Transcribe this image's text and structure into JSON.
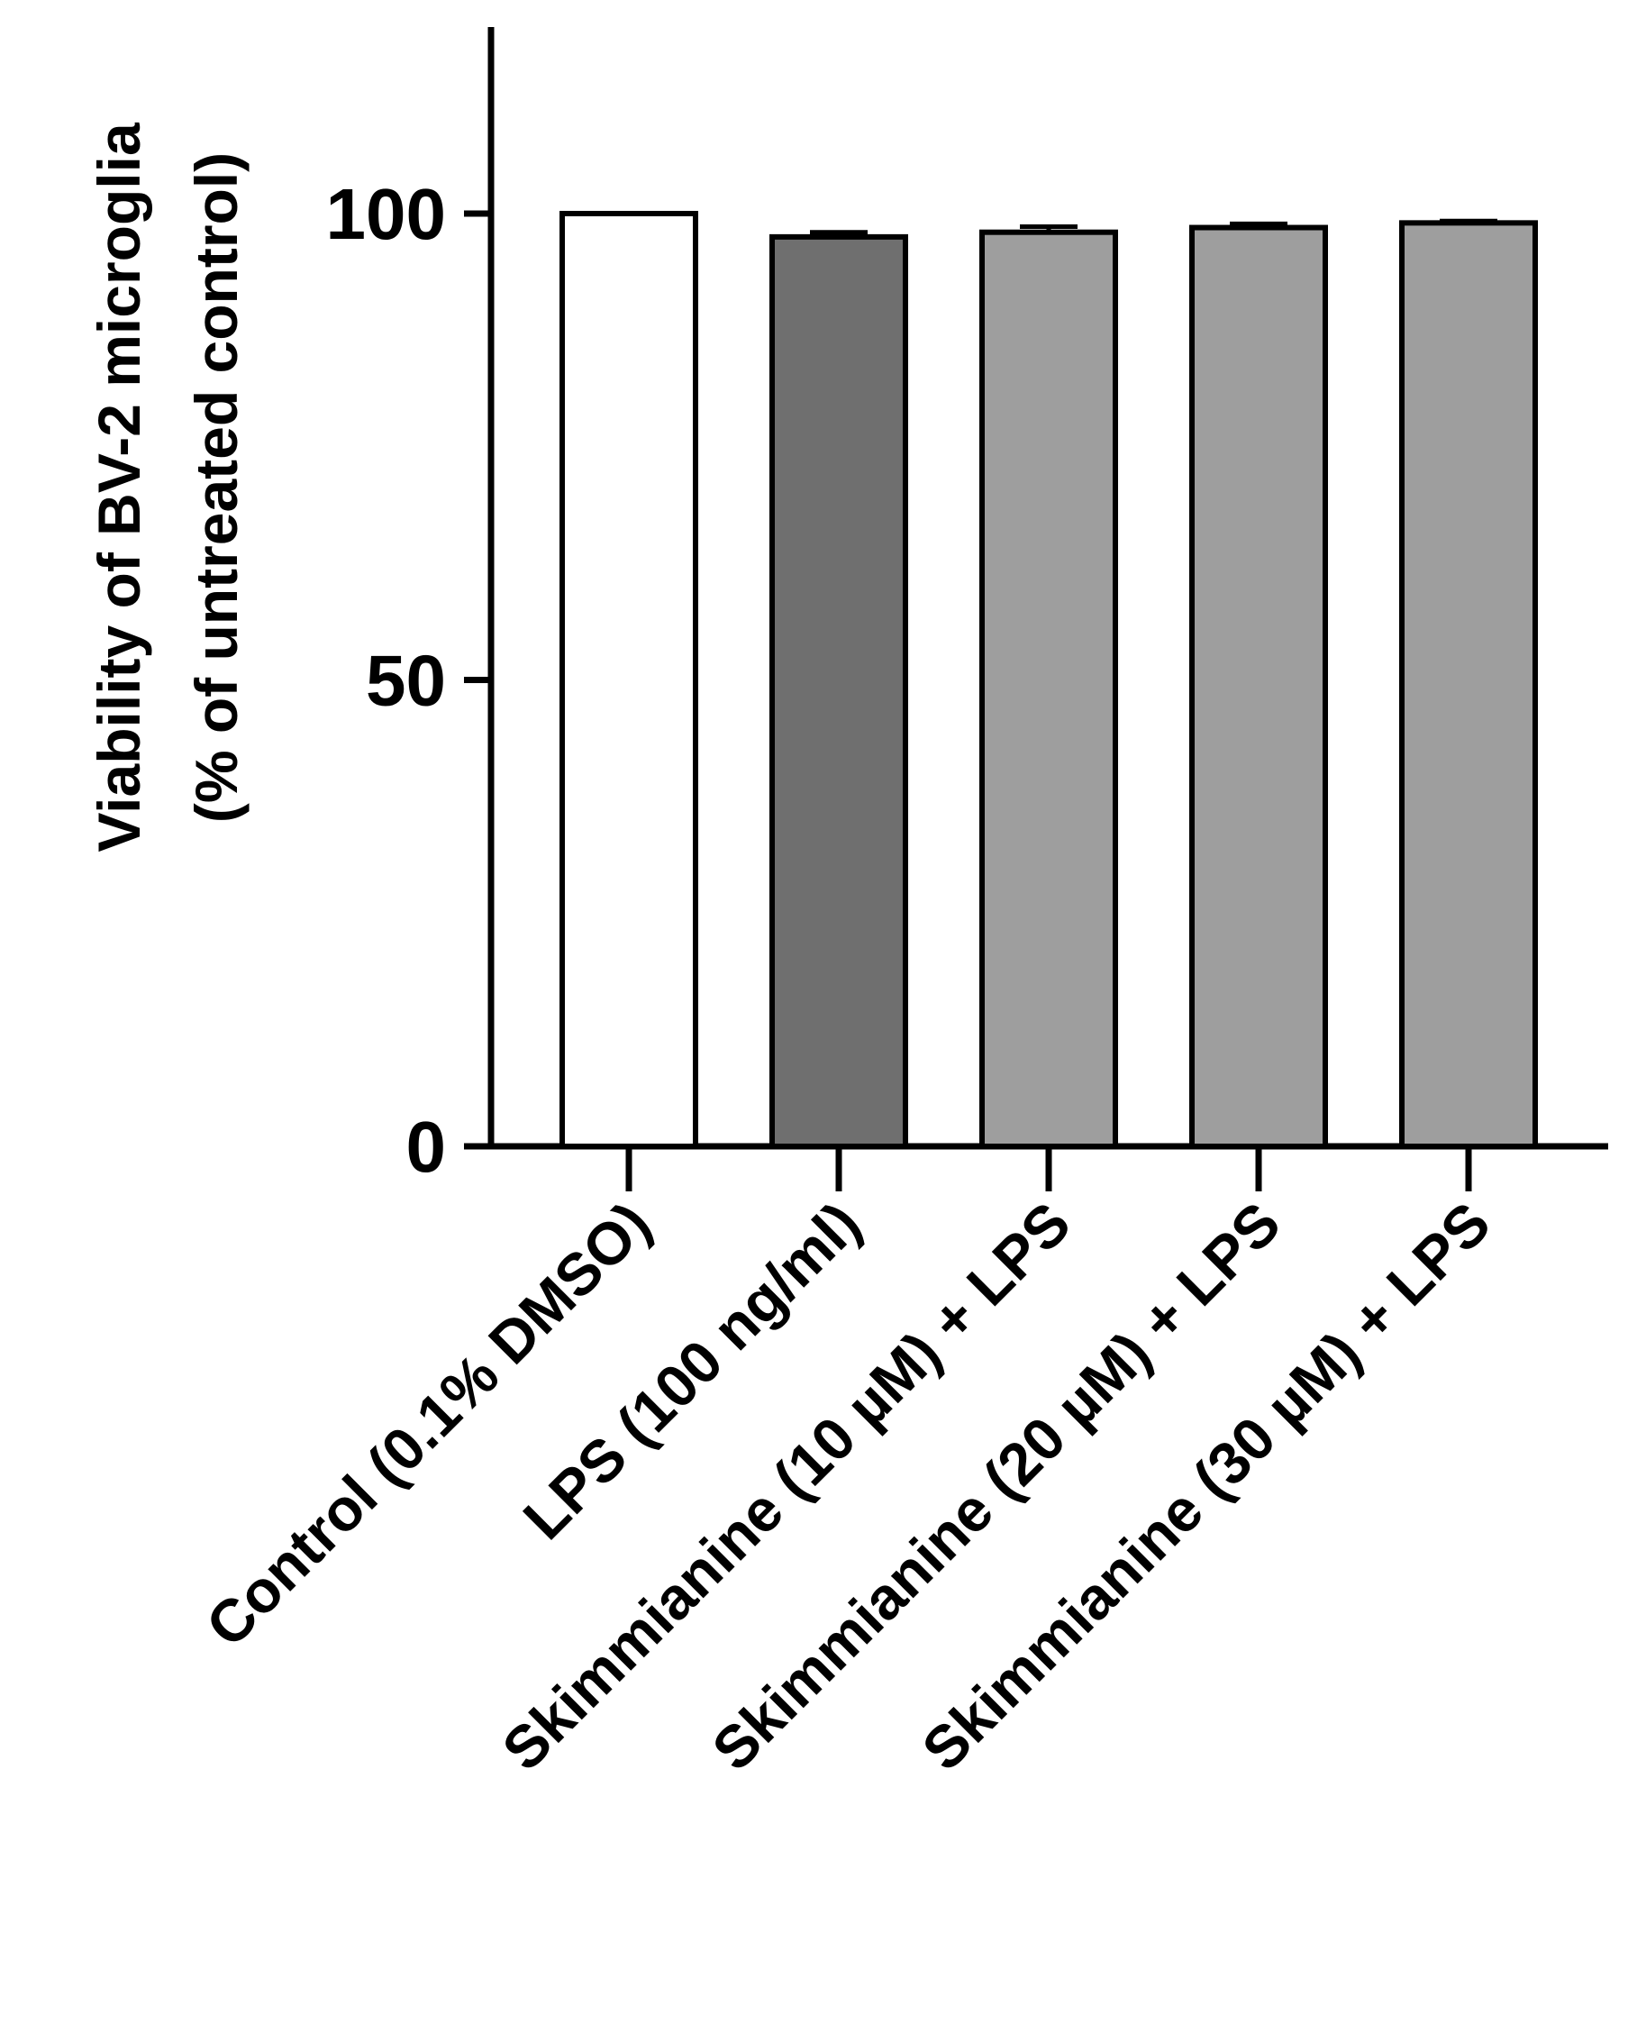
{
  "chart_data": {
    "type": "bar",
    "categories": [
      "Control (0.1% DMSO)",
      "LPS (100 ng/ml)",
      "Skimmianine (10 µM) + LPS",
      "Skimmianine (20 µM) + LPS",
      "Skimmianine (30 µM) + LPS"
    ],
    "values": [
      100,
      97.5,
      98,
      98.5,
      99
    ],
    "errors": [
      0,
      0.5,
      0.6,
      0.4,
      0.2
    ],
    "colors": [
      "#ffffff",
      "#6f6f6f",
      "#9e9e9e",
      "#9e9e9e",
      "#9e9e9e"
    ],
    "ylabel_line1": "Viability of BV-2 microglia",
    "ylabel_line2": "(% of untreated control)",
    "xlabel": "",
    "title": "",
    "ylim": [
      0,
      120
    ],
    "yticks": [
      0,
      50,
      100
    ],
    "grid": false,
    "legend": "none"
  }
}
